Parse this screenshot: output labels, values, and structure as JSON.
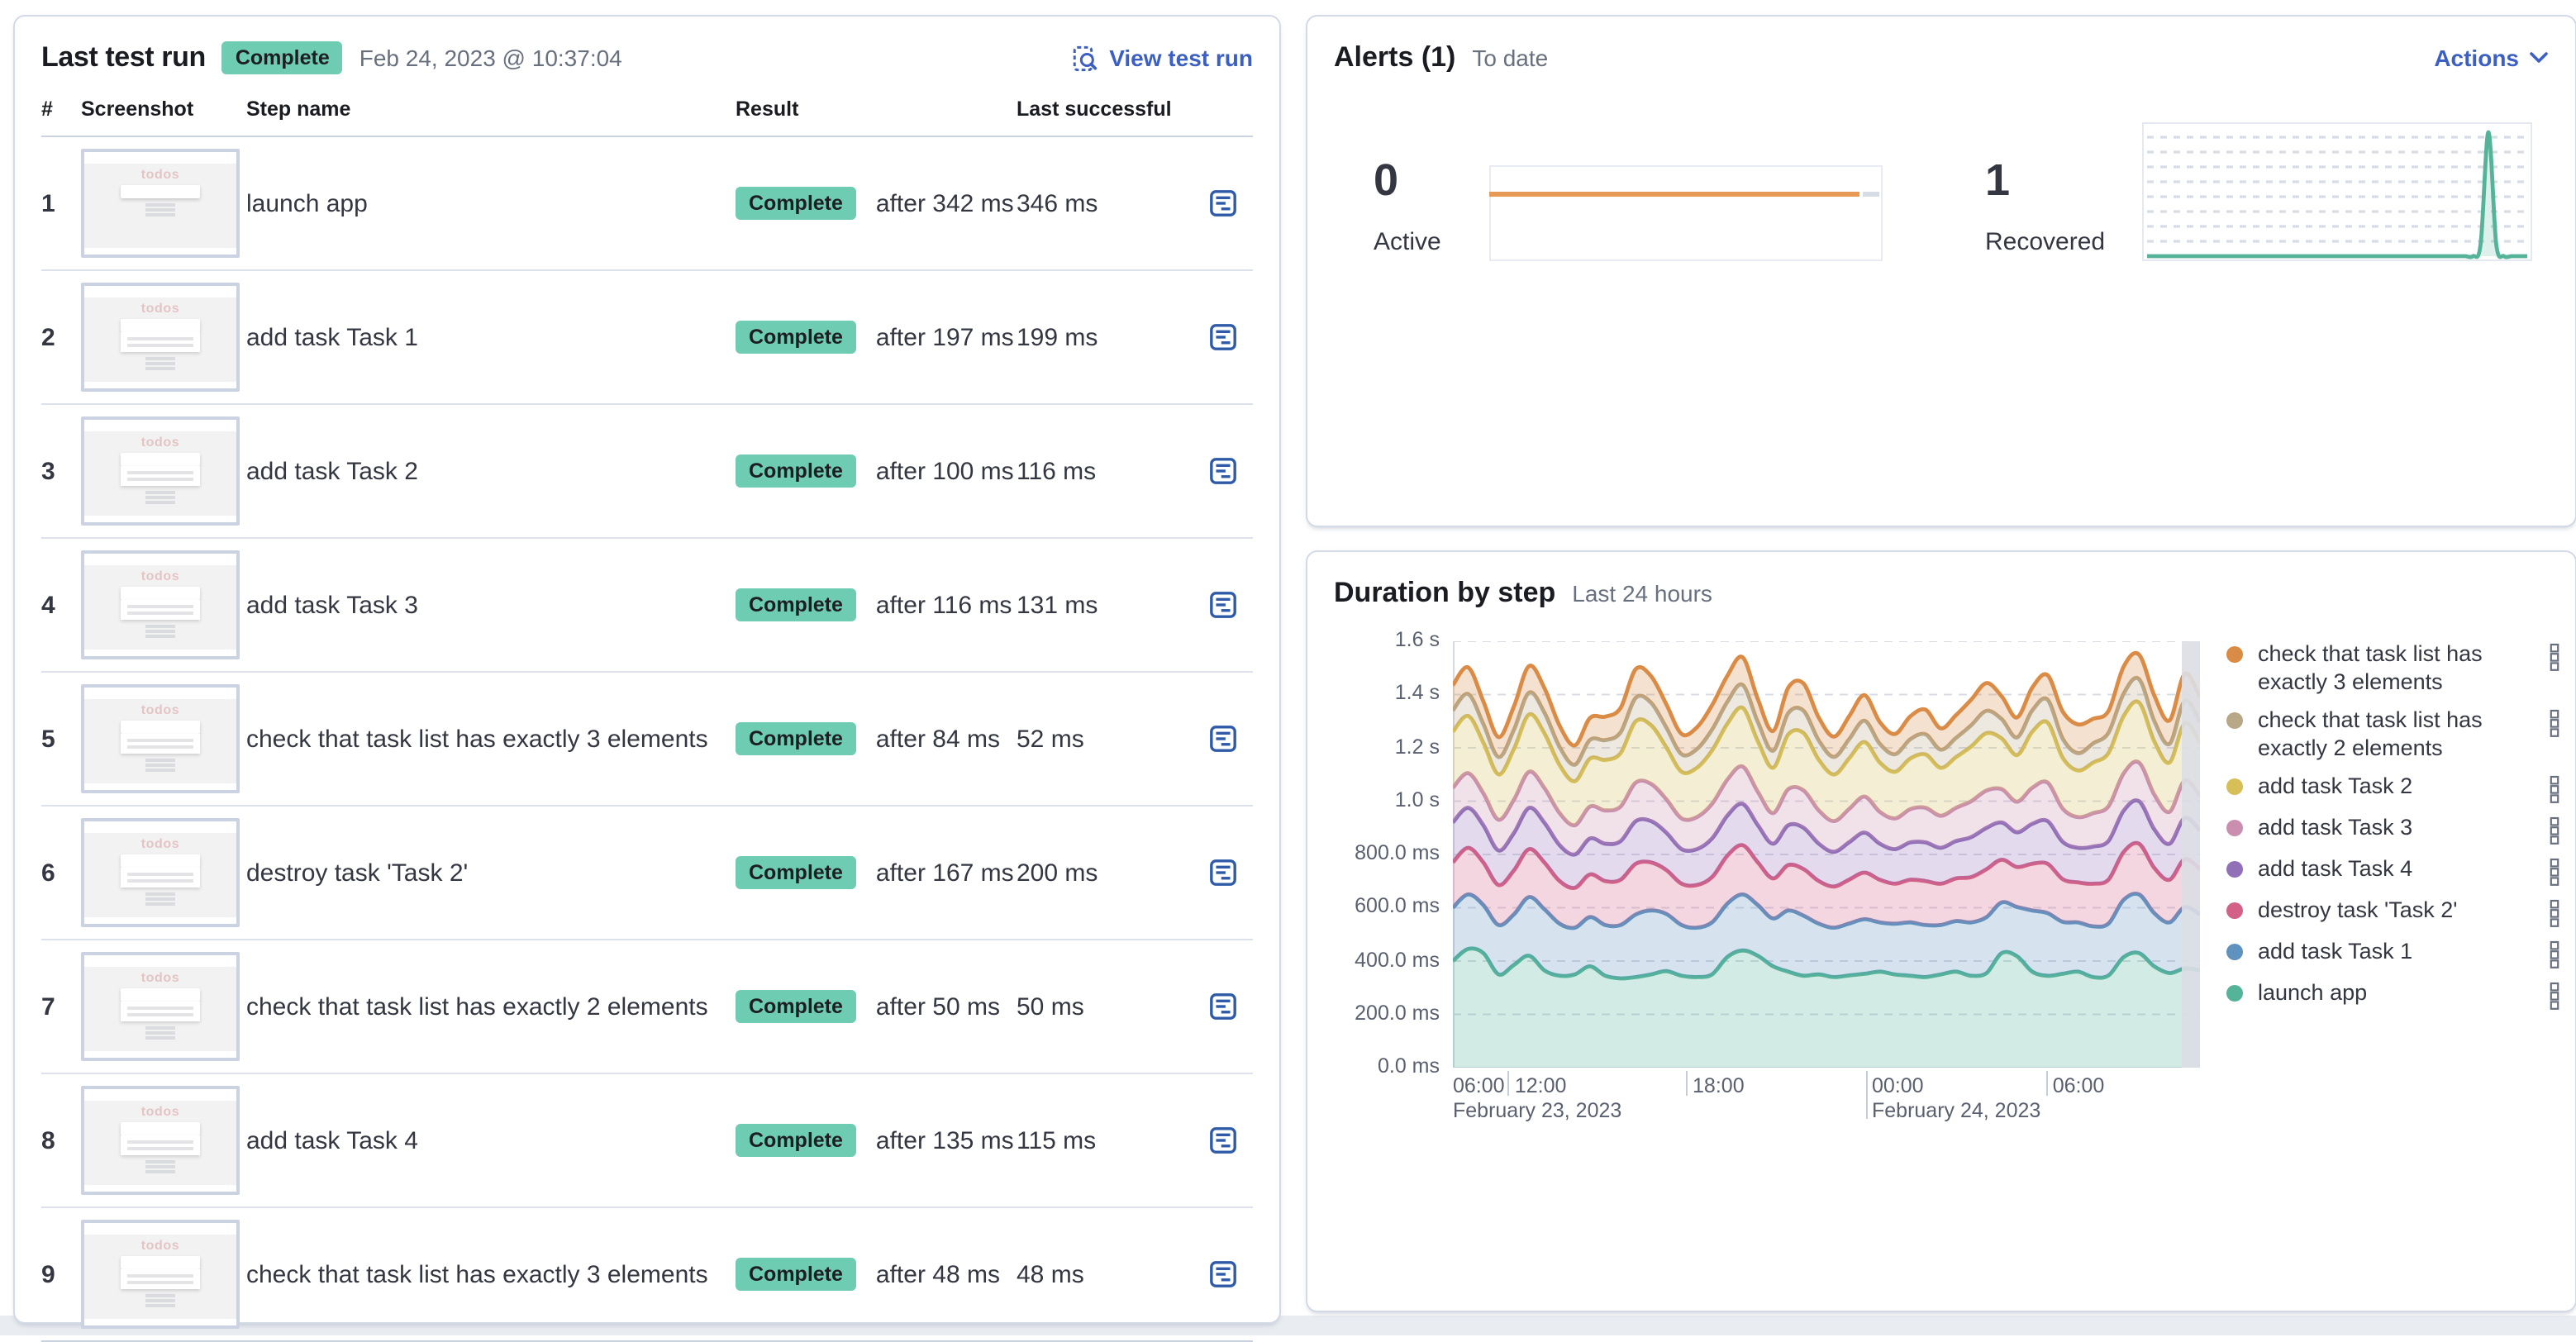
{
  "colors": {
    "link": "#3B5FC2",
    "badge_bg": "#6DCCB1",
    "heading": "#1A1C21",
    "text": "#343741",
    "muted": "#69707D",
    "border": "#D3DAE6",
    "grid": "#D8DCE5",
    "current_bar": "#DBDEE4"
  },
  "left_panel": {
    "title": "Last test run",
    "status_badge": "Complete",
    "timestamp": "Feb 24, 2023 @ 10:37:04",
    "view_test_run": "View test run",
    "columns": {
      "num": "#",
      "screenshot": "Screenshot",
      "step": "Step name",
      "result": "Result",
      "last": "Last successful"
    },
    "thumbnail_label": "todos",
    "rows": [
      {
        "num": "1",
        "name": "launch app",
        "status": "Complete",
        "after": "after 342 ms",
        "last": "346 ms"
      },
      {
        "num": "2",
        "name": "add task Task 1",
        "status": "Complete",
        "after": "after 197 ms",
        "last": "199 ms"
      },
      {
        "num": "3",
        "name": "add task Task 2",
        "status": "Complete",
        "after": "after 100 ms",
        "last": "116 ms"
      },
      {
        "num": "4",
        "name": "add task Task 3",
        "status": "Complete",
        "after": "after 116 ms",
        "last": "131 ms"
      },
      {
        "num": "5",
        "name": "check that task list has exactly 3 elements",
        "status": "Complete",
        "after": "after 84 ms",
        "last": "52 ms"
      },
      {
        "num": "6",
        "name": "destroy task 'Task 2'",
        "status": "Complete",
        "after": "after 167 ms",
        "last": "200 ms"
      },
      {
        "num": "7",
        "name": "check that task list has exactly 2 elements",
        "status": "Complete",
        "after": "after 50 ms",
        "last": "50 ms"
      },
      {
        "num": "8",
        "name": "add task Task 4",
        "status": "Complete",
        "after": "after 135 ms",
        "last": "115 ms"
      },
      {
        "num": "9",
        "name": "check that task list has exactly 3 elements",
        "status": "Complete",
        "after": "after 48 ms",
        "last": "48 ms"
      }
    ]
  },
  "alerts_panel": {
    "title": "Alerts (1)",
    "subtitle": "To date",
    "actions": "Actions",
    "stats": [
      {
        "value": "0",
        "label": "Active"
      },
      {
        "value": "1",
        "label": "Recovered"
      }
    ]
  },
  "duration_panel": {
    "title": "Duration by step",
    "subtitle": "Last 24 hours"
  },
  "chart_data": [
    {
      "type": "line",
      "name": "Active alerts",
      "color": "#E79A55",
      "values": [
        0,
        0
      ],
      "ylim": [
        0,
        1
      ],
      "grid": false
    },
    {
      "type": "area",
      "name": "Recovered alerts",
      "color": "#54B399",
      "grid": true,
      "values": [
        0,
        0,
        0,
        0,
        0,
        0,
        0,
        0,
        0,
        0,
        0,
        0,
        0,
        0,
        0,
        0,
        0,
        0,
        0,
        0,
        0,
        0,
        0,
        0,
        0,
        0,
        0,
        0,
        0,
        0,
        0,
        0,
        0,
        0,
        0,
        0,
        0,
        0,
        0,
        0,
        0,
        0,
        0,
        0.1,
        1,
        0.1,
        0,
        0,
        0,
        0
      ]
    },
    {
      "type": "area",
      "stacked": true,
      "title": "Duration by step",
      "subtitle": "Last 24 hours",
      "ylim": [
        0,
        1600
      ],
      "legend_position": "right",
      "grid": true,
      "y_ticks": [
        {
          "label": "0.0 ms",
          "value": 0
        },
        {
          "label": "200.0 ms",
          "value": 200
        },
        {
          "label": "400.0 ms",
          "value": 400
        },
        {
          "label": "600.0 ms",
          "value": 600
        },
        {
          "label": "800.0 ms",
          "value": 800
        },
        {
          "label": "1.0 s",
          "value": 1000
        },
        {
          "label": "1.2 s",
          "value": 1200
        },
        {
          "label": "1.4 s",
          "value": 1400
        },
        {
          "label": "1.6 s",
          "value": 1600
        }
      ],
      "x_ticks": [
        {
          "label": "06:00",
          "pos": 0,
          "edge": true
        },
        {
          "label": "12:00",
          "pos": 0.074
        },
        {
          "label": "18:00",
          "pos": 0.312
        },
        {
          "label": "00:00",
          "pos": 0.552,
          "tall": true
        },
        {
          "label": "06:00",
          "pos": 0.794
        }
      ],
      "x_date_labels": [
        {
          "label": "February 23, 2023",
          "pos": 0
        },
        {
          "label": "February 24, 2023",
          "pos": 0.552
        }
      ],
      "series": [
        {
          "name": "launch app",
          "color": "#54B399",
          "values": [
            400,
            445,
            430,
            350,
            385,
            420,
            365,
            345,
            350,
            380,
            345,
            335,
            340,
            350,
            362,
            345,
            340,
            350,
            415,
            440,
            420,
            380,
            360,
            345,
            350,
            340,
            346,
            352,
            360,
            350,
            345,
            340,
            350,
            360,
            345,
            355,
            430,
            418,
            360,
            345,
            352,
            360,
            340,
            346,
            415,
            430,
            380,
            355,
            372,
            365
          ]
        },
        {
          "name": "add task Task 1",
          "color": "#6092C0",
          "values": [
            200,
            205,
            180,
            185,
            190,
            220,
            230,
            195,
            175,
            185,
            190,
            200,
            235,
            240,
            215,
            190,
            185,
            195,
            200,
            210,
            190,
            180,
            230,
            225,
            190,
            185,
            195,
            205,
            185,
            190,
            200,
            195,
            185,
            190,
            200,
            210,
            190,
            185,
            230,
            235,
            195,
            185,
            190,
            195,
            215,
            220,
            200,
            190,
            230,
            210
          ]
        },
        {
          "name": "destroy task 'Task 2'",
          "color": "#D36086",
          "values": [
            170,
            175,
            160,
            150,
            165,
            180,
            175,
            160,
            150,
            160,
            165,
            170,
            190,
            180,
            165,
            155,
            160,
            170,
            180,
            185,
            160,
            150,
            170,
            175,
            160,
            155,
            165,
            175,
            160,
            150,
            160,
            165,
            155,
            160,
            170,
            180,
            160,
            150,
            175,
            185,
            160,
            150,
            160,
            165,
            180,
            190,
            170,
            160,
            180,
            170
          ]
        },
        {
          "name": "add task Task 4",
          "color": "#9170B8",
          "values": [
            150,
            150,
            140,
            130,
            140,
            155,
            150,
            135,
            125,
            135,
            140,
            145,
            160,
            155,
            140,
            130,
            135,
            145,
            150,
            155,
            140,
            130,
            150,
            155,
            140,
            130,
            140,
            150,
            135,
            130,
            140,
            145,
            135,
            140,
            150,
            155,
            140,
            130,
            150,
            160,
            140,
            130,
            140,
            145,
            155,
            160,
            145,
            135,
            155,
            145
          ]
        },
        {
          "name": "add task Task 3",
          "color": "#CA8EAE",
          "values": [
            130,
            130,
            120,
            115,
            125,
            135,
            130,
            120,
            110,
            120,
            125,
            130,
            145,
            140,
            125,
            115,
            120,
            130,
            135,
            140,
            125,
            115,
            135,
            140,
            125,
            115,
            125,
            135,
            120,
            115,
            125,
            130,
            120,
            125,
            135,
            140,
            125,
            115,
            135,
            145,
            125,
            115,
            125,
            130,
            140,
            145,
            130,
            120,
            140,
            130
          ]
        },
        {
          "name": "add task Task 2",
          "color": "#D6BF57",
          "values": [
            210,
            215,
            190,
            170,
            190,
            215,
            205,
            180,
            165,
            180,
            190,
            200,
            230,
            220,
            195,
            175,
            185,
            200,
            210,
            220,
            190,
            170,
            205,
            215,
            190,
            175,
            190,
            205,
            185,
            175,
            190,
            200,
            180,
            190,
            205,
            215,
            190,
            175,
            210,
            225,
            190,
            175,
            190,
            200,
            215,
            225,
            200,
            185,
            215,
            200
          ]
        },
        {
          "name": "check that task list has exactly 2 elements",
          "color": "#B9A888",
          "values": [
            80,
            82,
            70,
            65,
            72,
            82,
            78,
            68,
            62,
            70,
            74,
            78,
            88,
            84,
            74,
            66,
            70,
            78,
            82,
            86,
            72,
            64,
            80,
            84,
            72,
            66,
            72,
            80,
            70,
            66,
            72,
            76,
            68,
            72,
            80,
            84,
            72,
            66,
            80,
            86,
            72,
            65,
            72,
            76,
            84,
            88,
            76,
            70,
            84,
            76
          ]
        },
        {
          "name": "check that task list has exactly 3 elements",
          "color": "#DA8B45",
          "values": [
            95,
            100,
            85,
            75,
            88,
            100,
            92,
            80,
            72,
            82,
            88,
            92,
            108,
            100,
            88,
            76,
            82,
            92,
            98,
            104,
            86,
            74,
            96,
            102,
            86,
            76,
            86,
            96,
            82,
            76,
            86,
            92,
            80,
            86,
            96,
            104,
            86,
            75,
            86,
            92,
            102,
            108,
            92,
            82,
            102,
            92,
            96,
            88,
            102,
            94
          ]
        }
      ]
    }
  ]
}
